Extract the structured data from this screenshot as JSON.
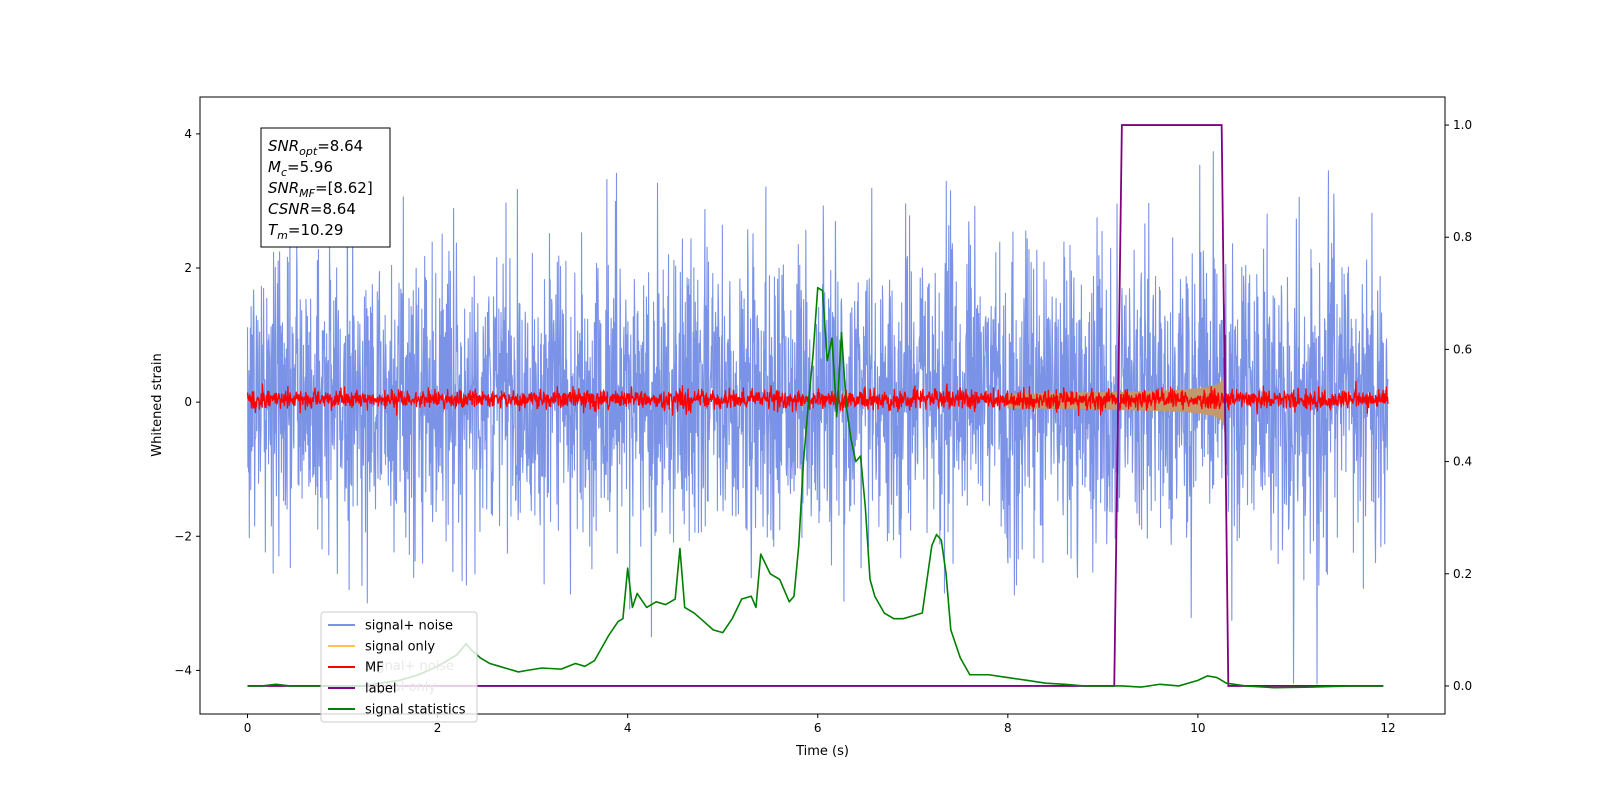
{
  "chart_data": {
    "type": "line",
    "xlabel": "Time (s)",
    "ylabel": "Whitened strain",
    "xlim": [
      -0.5,
      12.6
    ],
    "ylim_left": [
      -4.65,
      4.55
    ],
    "ylim_right": [
      -0.05,
      1.05
    ],
    "x_ticks": [
      0,
      2,
      4,
      6,
      8,
      10,
      12
    ],
    "y_ticks_left": [
      -4,
      -2,
      0,
      2,
      4
    ],
    "y_ticks_right": [
      0.0,
      0.2,
      0.4,
      0.6,
      0.8,
      1.0
    ],
    "grid": false,
    "legend": {
      "placement": "lower-left",
      "entries": [
        {
          "label": "signal+ noise",
          "color": "#7b93e6"
        },
        {
          "label": "signal only",
          "color": "#ffc04d"
        },
        {
          "label": "MF",
          "color": "#ff0000"
        },
        {
          "label": "label",
          "color": "#800080"
        },
        {
          "label": "signal statistics",
          "color": "#008000"
        }
      ],
      "ghost_entries": [
        "signal+ noise",
        "signal only"
      ]
    },
    "annotation": {
      "lines": [
        {
          "sym": "SNR",
          "sub": "opt",
          "value": "=8.64"
        },
        {
          "sym": "M",
          "sub": "c",
          "value": "=5.96"
        },
        {
          "sym": "SNR",
          "sub": "MF",
          "value": "=[8.62]"
        },
        {
          "sym": "CSNR",
          "sub": "",
          "value": "=8.64"
        },
        {
          "sym": "T",
          "sub": "m",
          "value": "=10.29"
        }
      ]
    },
    "series": [
      {
        "name": "signal+ noise",
        "axis": "left",
        "color": "#7b93e6",
        "style": "noise",
        "x_range": [
          0,
          12
        ],
        "typical_envelope": [
          -2.2,
          2.4
        ],
        "extreme_range": [
          -4.2,
          4.15
        ]
      },
      {
        "name": "signal only",
        "axis": "left",
        "color": "#c4986c",
        "style": "chirp",
        "x_range": [
          8.0,
          10.29
        ],
        "amplitude_end": 0.6
      },
      {
        "name": "MF",
        "axis": "left",
        "color": "#ff0000",
        "style": "noise",
        "x_range": [
          0,
          12
        ],
        "typical_envelope": [
          -0.12,
          0.2
        ],
        "extreme_range": [
          -0.3,
          1.0
        ]
      },
      {
        "name": "label",
        "axis": "right",
        "color": "#800080",
        "style": "step",
        "x": [
          0,
          9.12,
          9.2,
          10.25,
          10.32,
          11.95
        ],
        "y": [
          0,
          0,
          1,
          1,
          0,
          0
        ]
      },
      {
        "name": "signal statistics",
        "axis": "right",
        "color": "#008000",
        "style": "line",
        "x": [
          0,
          0.15,
          0.3,
          0.45,
          0.6,
          0.8,
          1.0,
          1.2,
          1.4,
          1.6,
          1.8,
          2.0,
          2.1,
          2.2,
          2.3,
          2.35,
          2.45,
          2.55,
          2.65,
          2.75,
          2.85,
          2.95,
          3.1,
          3.3,
          3.45,
          3.55,
          3.65,
          3.8,
          3.9,
          3.95,
          4.0,
          4.05,
          4.1,
          4.2,
          4.3,
          4.4,
          4.5,
          4.55,
          4.6,
          4.7,
          4.8,
          4.9,
          5.0,
          5.1,
          5.2,
          5.3,
          5.35,
          5.4,
          5.5,
          5.6,
          5.7,
          5.75,
          5.8,
          5.85,
          5.9,
          5.95,
          6.0,
          6.05,
          6.1,
          6.15,
          6.2,
          6.25,
          6.3,
          6.35,
          6.4,
          6.45,
          6.5,
          6.55,
          6.6,
          6.7,
          6.8,
          6.9,
          7.0,
          7.1,
          7.2,
          7.25,
          7.3,
          7.35,
          7.4,
          7.5,
          7.6,
          7.7,
          7.8,
          8.0,
          8.2,
          8.4,
          8.6,
          8.8,
          9.0,
          9.2,
          9.4,
          9.6,
          9.8,
          9.9,
          10.0,
          10.1,
          10.2,
          10.3,
          10.5,
          10.8,
          11.2,
          11.6,
          11.95
        ],
        "y": [
          0.0,
          0.0,
          0.003,
          0.0,
          0.0,
          0.0,
          0.0,
          0.0,
          0.005,
          0.01,
          0.02,
          0.035,
          0.045,
          0.055,
          0.075,
          0.065,
          0.05,
          0.04,
          0.035,
          0.03,
          0.025,
          0.028,
          0.032,
          0.03,
          0.04,
          0.035,
          0.045,
          0.09,
          0.115,
          0.12,
          0.21,
          0.14,
          0.165,
          0.14,
          0.15,
          0.145,
          0.155,
          0.245,
          0.14,
          0.13,
          0.115,
          0.1,
          0.095,
          0.12,
          0.155,
          0.16,
          0.14,
          0.235,
          0.2,
          0.19,
          0.15,
          0.16,
          0.25,
          0.4,
          0.5,
          0.59,
          0.71,
          0.705,
          0.58,
          0.62,
          0.48,
          0.63,
          0.5,
          0.44,
          0.4,
          0.41,
          0.32,
          0.19,
          0.16,
          0.13,
          0.12,
          0.12,
          0.125,
          0.13,
          0.25,
          0.27,
          0.26,
          0.2,
          0.1,
          0.05,
          0.02,
          0.02,
          0.02,
          0.015,
          0.01,
          0.005,
          0.003,
          0.0,
          0.0,
          0.0,
          -0.002,
          0.003,
          0.0,
          0.005,
          0.01,
          0.018,
          0.015,
          0.005,
          0.0,
          -0.003,
          -0.002,
          0.0,
          0.0
        ]
      }
    ]
  }
}
